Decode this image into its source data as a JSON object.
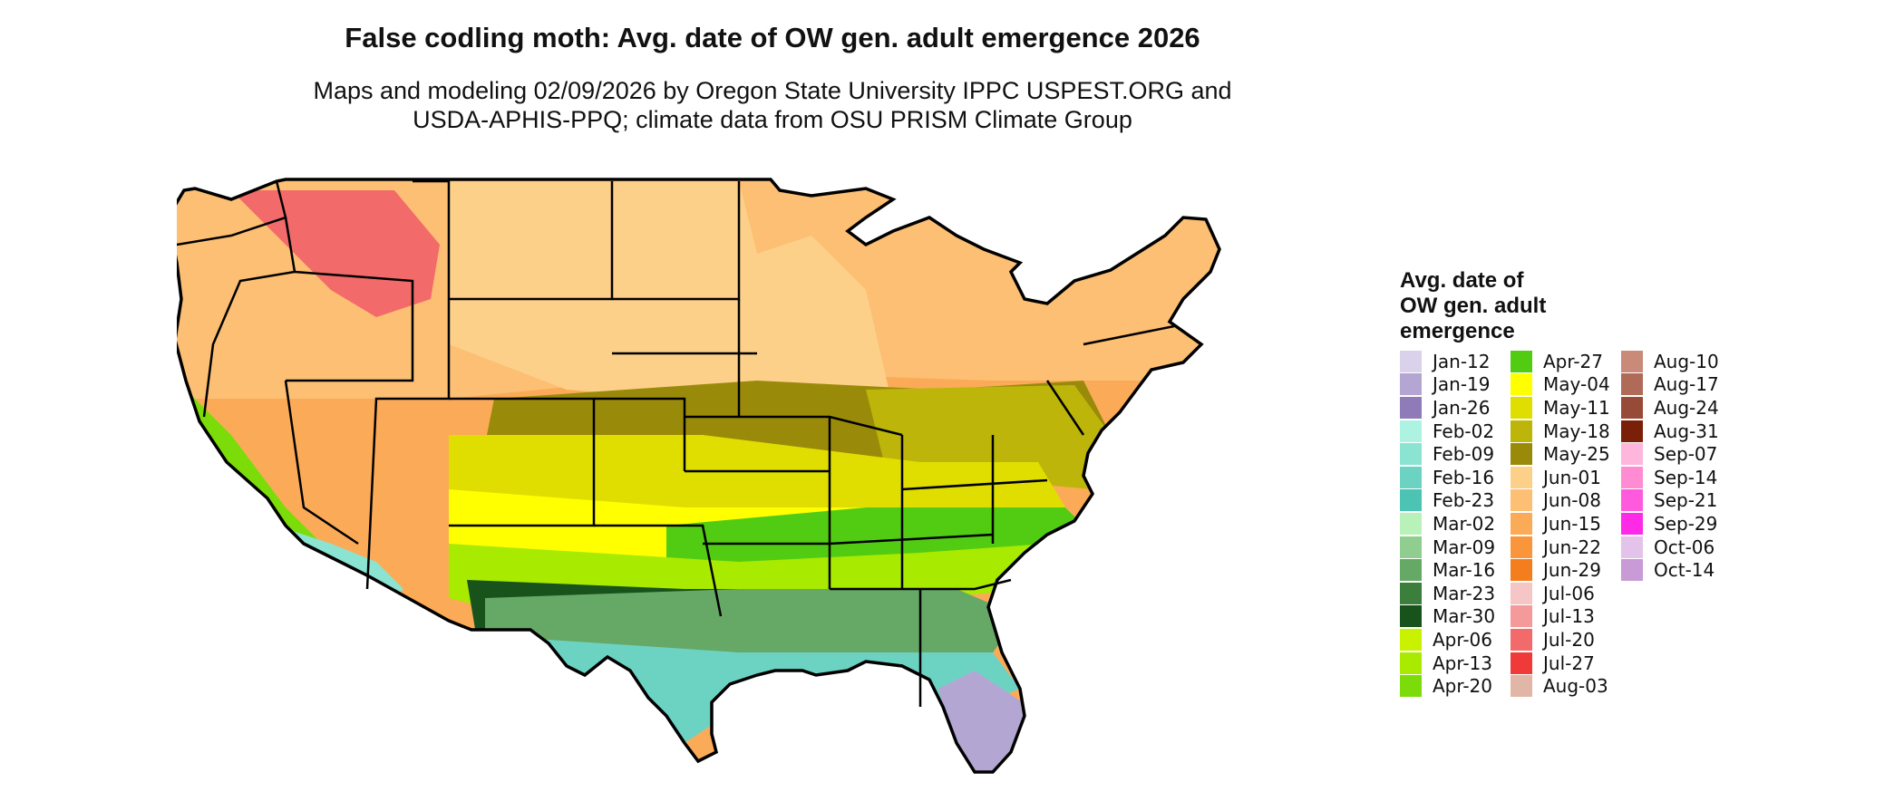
{
  "title": "False codling moth: Avg. date of OW gen. adult emergence 2026",
  "subtitle_line1": "Maps and modeling 02/09/2026 by Oregon State University IPPC USPEST.ORG and",
  "subtitle_line2": "USDA-APHIS-PPQ; climate data from OSU PRISM Climate Group",
  "legend": {
    "title_lines": [
      "Avg. date of",
      "OW gen. adult",
      "emergence"
    ],
    "columns": [
      [
        {
          "label": "Jan-12",
          "color": "#d9d2ea"
        },
        {
          "label": "Jan-19",
          "color": "#b4a6d2"
        },
        {
          "label": "Jan-26",
          "color": "#8f7bb8"
        },
        {
          "label": "Feb-02",
          "color": "#aef3e2"
        },
        {
          "label": "Feb-09",
          "color": "#8be4d2"
        },
        {
          "label": "Feb-16",
          "color": "#6cd3c3"
        },
        {
          "label": "Feb-23",
          "color": "#4cc3b3"
        },
        {
          "label": "Mar-02",
          "color": "#b9f2b9"
        },
        {
          "label": "Mar-09",
          "color": "#8fce8f"
        },
        {
          "label": "Mar-16",
          "color": "#66a866"
        },
        {
          "label": "Mar-23",
          "color": "#3c7f3c"
        },
        {
          "label": "Mar-30",
          "color": "#17531a"
        },
        {
          "label": "Apr-06",
          "color": "#c8f200"
        },
        {
          "label": "Apr-13",
          "color": "#a8ea00"
        },
        {
          "label": "Apr-20",
          "color": "#7cdc0a"
        }
      ],
      [
        {
          "label": "Apr-27",
          "color": "#52cc12"
        },
        {
          "label": "May-04",
          "color": "#ffff00"
        },
        {
          "label": "May-11",
          "color": "#e0de00"
        },
        {
          "label": "May-18",
          "color": "#bdb50a"
        },
        {
          "label": "May-25",
          "color": "#9a8a0a"
        },
        {
          "label": "Jun-01",
          "color": "#fdd08a"
        },
        {
          "label": "Jun-08",
          "color": "#fcbf73"
        },
        {
          "label": "Jun-15",
          "color": "#fbab57"
        },
        {
          "label": "Jun-22",
          "color": "#f9953a"
        },
        {
          "label": "Jun-29",
          "color": "#f47d1e"
        },
        {
          "label": "Jul-06",
          "color": "#f6c6c6"
        },
        {
          "label": "Jul-13",
          "color": "#f49a9a"
        },
        {
          "label": "Jul-20",
          "color": "#f26a6a"
        },
        {
          "label": "Jul-27",
          "color": "#f03a3a"
        },
        {
          "label": "Aug-03",
          "color": "#e2b6a6"
        }
      ],
      [
        {
          "label": "Aug-10",
          "color": "#c98a7a"
        },
        {
          "label": "Aug-17",
          "color": "#b06a58"
        },
        {
          "label": "Aug-24",
          "color": "#984a38"
        },
        {
          "label": "Aug-31",
          "color": "#7a2008"
        },
        {
          "label": "Sep-07",
          "color": "#ffb6dd"
        },
        {
          "label": "Sep-14",
          "color": "#ff8bd3"
        },
        {
          "label": "Sep-21",
          "color": "#ff5ade"
        },
        {
          "label": "Sep-29",
          "color": "#ff2ae8"
        },
        {
          "label": "Oct-06",
          "color": "#e3c3ea"
        },
        {
          "label": "Oct-14",
          "color": "#c89ad6"
        }
      ]
    ]
  },
  "map": {
    "region": "Contiguous United States",
    "base_color": "#fbab57",
    "zones": [
      {
        "name": "north-tier",
        "color": "#fcbf73"
      },
      {
        "name": "northern-plains",
        "color": "#fdd08a"
      },
      {
        "name": "mountains-high",
        "color": "#f26a6a"
      },
      {
        "name": "central-band",
        "color": "#9a8a0a"
      },
      {
        "name": "midwest",
        "color": "#bdb50a"
      },
      {
        "name": "plains-mid",
        "color": "#e0de00"
      },
      {
        "name": "south-central",
        "color": "#ffff00"
      },
      {
        "name": "southeast-upper",
        "color": "#52cc12"
      },
      {
        "name": "southeast-mid",
        "color": "#a8ea00"
      },
      {
        "name": "gulf-coast",
        "color": "#17531a"
      },
      {
        "name": "gulf-inner",
        "color": "#66a866"
      },
      {
        "name": "gulf-coastal",
        "color": "#6cd3c3"
      },
      {
        "name": "florida-south",
        "color": "#b4a6d2"
      },
      {
        "name": "texas-south",
        "color": "#b4a6d2"
      },
      {
        "name": "california-valley",
        "color": "#7cdc0a"
      },
      {
        "name": "arizona-desert",
        "color": "#8be4d2"
      }
    ]
  }
}
